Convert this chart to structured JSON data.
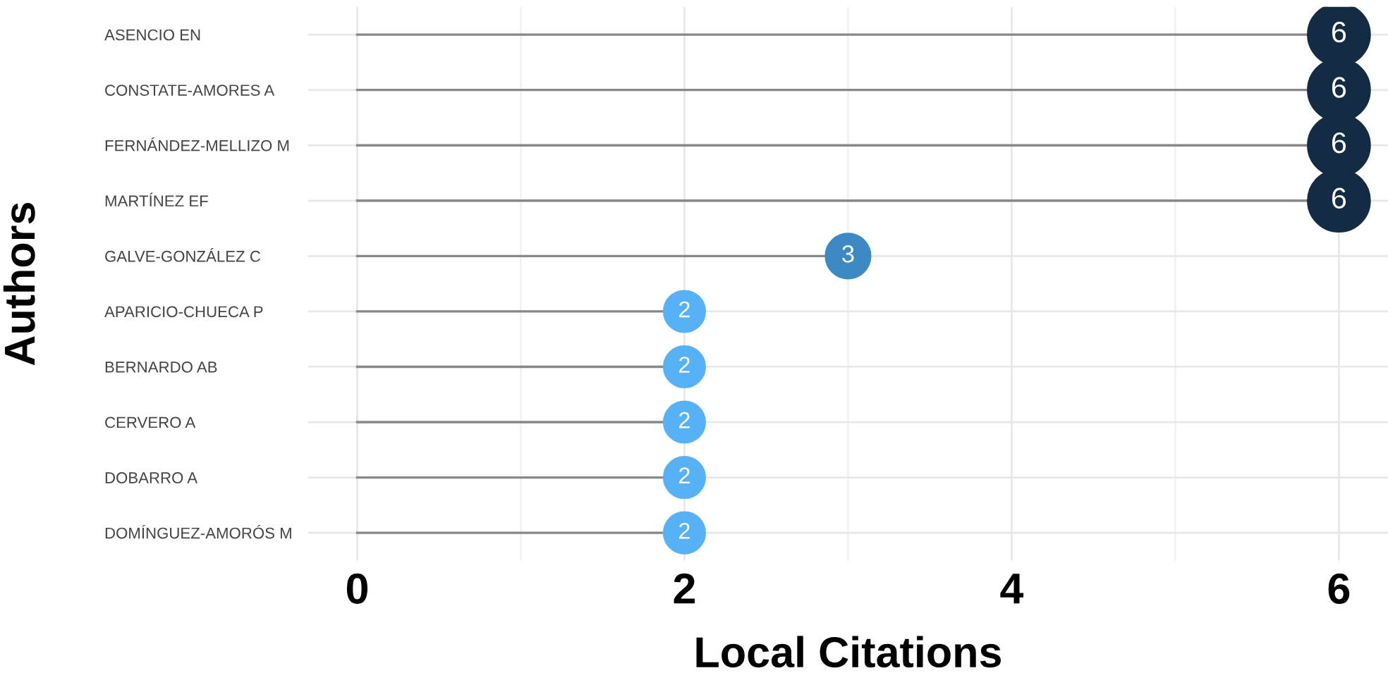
{
  "chart_data": {
    "type": "lollipop",
    "orientation": "horizontal",
    "xlabel": "Local Citations",
    "ylabel": "Authors",
    "categories": [
      "ASENCIO EN",
      "CONSTATE-AMORES A",
      "FERNÁNDEZ-MELLIZO M",
      "MARTÍNEZ EF",
      "GALVE-GONZÁLEZ C",
      "APARICIO-CHUECA P",
      "BERNARDO AB",
      "CERVERO A",
      "DOBARRO A",
      "DOMÍNGUEZ-AMORÓS M"
    ],
    "values": [
      6,
      6,
      6,
      6,
      3,
      2,
      2,
      2,
      2,
      2
    ],
    "sizes": [
      1,
      1,
      1,
      1,
      0.52,
      0.44,
      0.44,
      0.44,
      0.44,
      0.44
    ],
    "colors": [
      "#132b43",
      "#132b43",
      "#132b43",
      "#132b43",
      "#3d89c3",
      "#56b1f7",
      "#56b1f7",
      "#56b1f7",
      "#56b1f7",
      "#56b1f7"
    ],
    "xlim": [
      -0.3,
      6.3
    ],
    "xticks": [
      0,
      2,
      4,
      6
    ],
    "grid": true,
    "data_labels": true,
    "marker": "circle",
    "legend": false
  }
}
